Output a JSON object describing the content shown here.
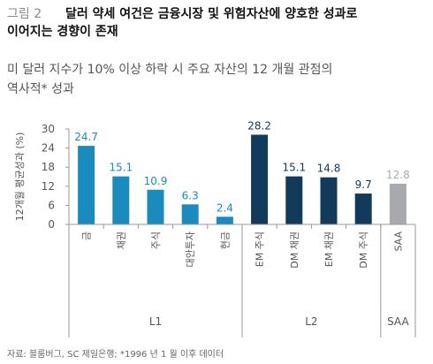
{
  "figure": {
    "label": "그림 2",
    "title_line1": "달러 약세 여건은 금융시장 및 위험자산에 양호한 성과로",
    "title_line2": "이어지는 경향이 존재"
  },
  "subtitle": {
    "line1": "미 달러 지수가 10% 이상 하락 시 주요 자산의 12 개월 관점의",
    "line2": "역사적* 성과"
  },
  "source": "자료: 블룸버그, SC 제일은행; *1996 년 1 월 이후 데이터",
  "chart_data": {
    "type": "bar",
    "ylabel": "12개월 평균성과 (%)",
    "ylim": [
      0,
      30
    ],
    "yticks": [
      0,
      6,
      12,
      18,
      24,
      30
    ],
    "grid": false,
    "categories": [
      "금",
      "채권",
      "주식",
      "대안투자",
      "현금",
      "EM 주식",
      "DM 채권",
      "EM 채권",
      "DM 주식",
      "SAA"
    ],
    "values": [
      24.7,
      15.1,
      10.9,
      6.3,
      2.4,
      28.2,
      15.1,
      14.8,
      9.7,
      12.8
    ],
    "value_labels": [
      "24.7",
      "15.1",
      "10.9",
      "6.3",
      "2.4",
      "28.2",
      "15.1",
      "14.8",
      "9.7",
      "12.8"
    ],
    "groups": [
      "L1",
      "L1",
      "L1",
      "L1",
      "L1",
      "L2",
      "L2",
      "L2",
      "L2",
      "SAA"
    ],
    "group_labels": [
      "L1",
      "L2",
      "SAA"
    ],
    "colors": {
      "L1": "#1b8bbd",
      "L2": "#123a59",
      "SAA": "#a7a9ac",
      "label_L1": "#1b8bbd",
      "label_L2": "#123a59",
      "label_SAA": "#a7a9ac"
    }
  }
}
